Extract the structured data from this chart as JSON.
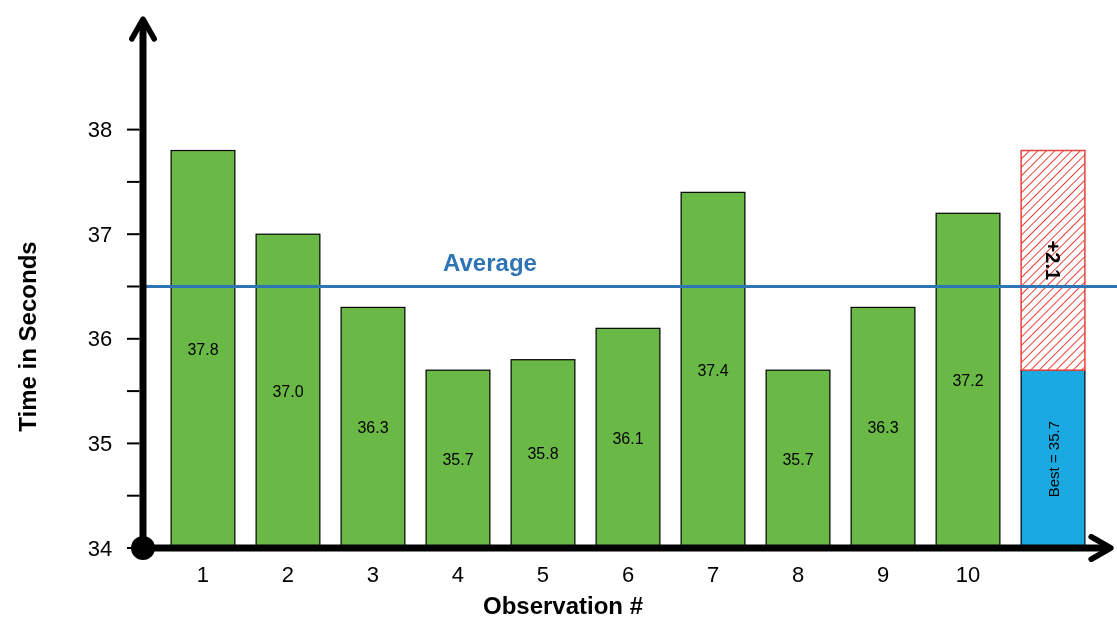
{
  "chart_data": {
    "type": "bar",
    "xlabel": "Observation #",
    "ylabel": "Time in Seconds",
    "categories": [
      "1",
      "2",
      "3",
      "4",
      "5",
      "6",
      "7",
      "8",
      "9",
      "10",
      null
    ],
    "series": [
      {
        "color": "#6ab946",
        "values": [
          37.8,
          37.0,
          36.3,
          35.7,
          35.8,
          36.1,
          37.4,
          35.7,
          36.3,
          37.2,
          null
        ],
        "value_labels": [
          "37.8",
          "37.0",
          "36.3",
          "35.7",
          "35.8",
          "36.1",
          "37.4",
          "35.7",
          "36.3",
          "37.2",
          null
        ]
      },
      {
        "color": "#1ba9e1",
        "values": [
          null,
          null,
          null,
          null,
          null,
          null,
          null,
          null,
          null,
          null,
          35.7
        ],
        "value_labels": [
          null,
          null,
          null,
          null,
          null,
          null,
          null,
          null,
          null,
          null,
          "Best = 35.7"
        ]
      },
      {
        "color": "#e8413a",
        "base": [
          null,
          null,
          null,
          null,
          null,
          null,
          null,
          null,
          null,
          null,
          35.7
        ],
        "values": [
          null,
          null,
          null,
          null,
          null,
          null,
          null,
          null,
          null,
          null,
          2.1
        ],
        "value_labels": [
          null,
          null,
          null,
          null,
          null,
          null,
          null,
          null,
          null,
          null,
          "+2.1"
        ]
      }
    ],
    "ylim": [
      34,
      39
    ],
    "yticks": [
      34,
      {
        "value": 34.5,
        "label": null
      },
      35,
      {
        "value": 35.5,
        "label": null
      },
      36,
      {
        "value": 36.5,
        "label": null
      },
      37,
      {
        "value": 37.5,
        "label": null
      },
      38
    ],
    "ref_lines": [
      {
        "axis": "y",
        "value": 36.5,
        "label": "Average",
        "color": "#2e75b6"
      }
    ],
    "grid": false
  }
}
